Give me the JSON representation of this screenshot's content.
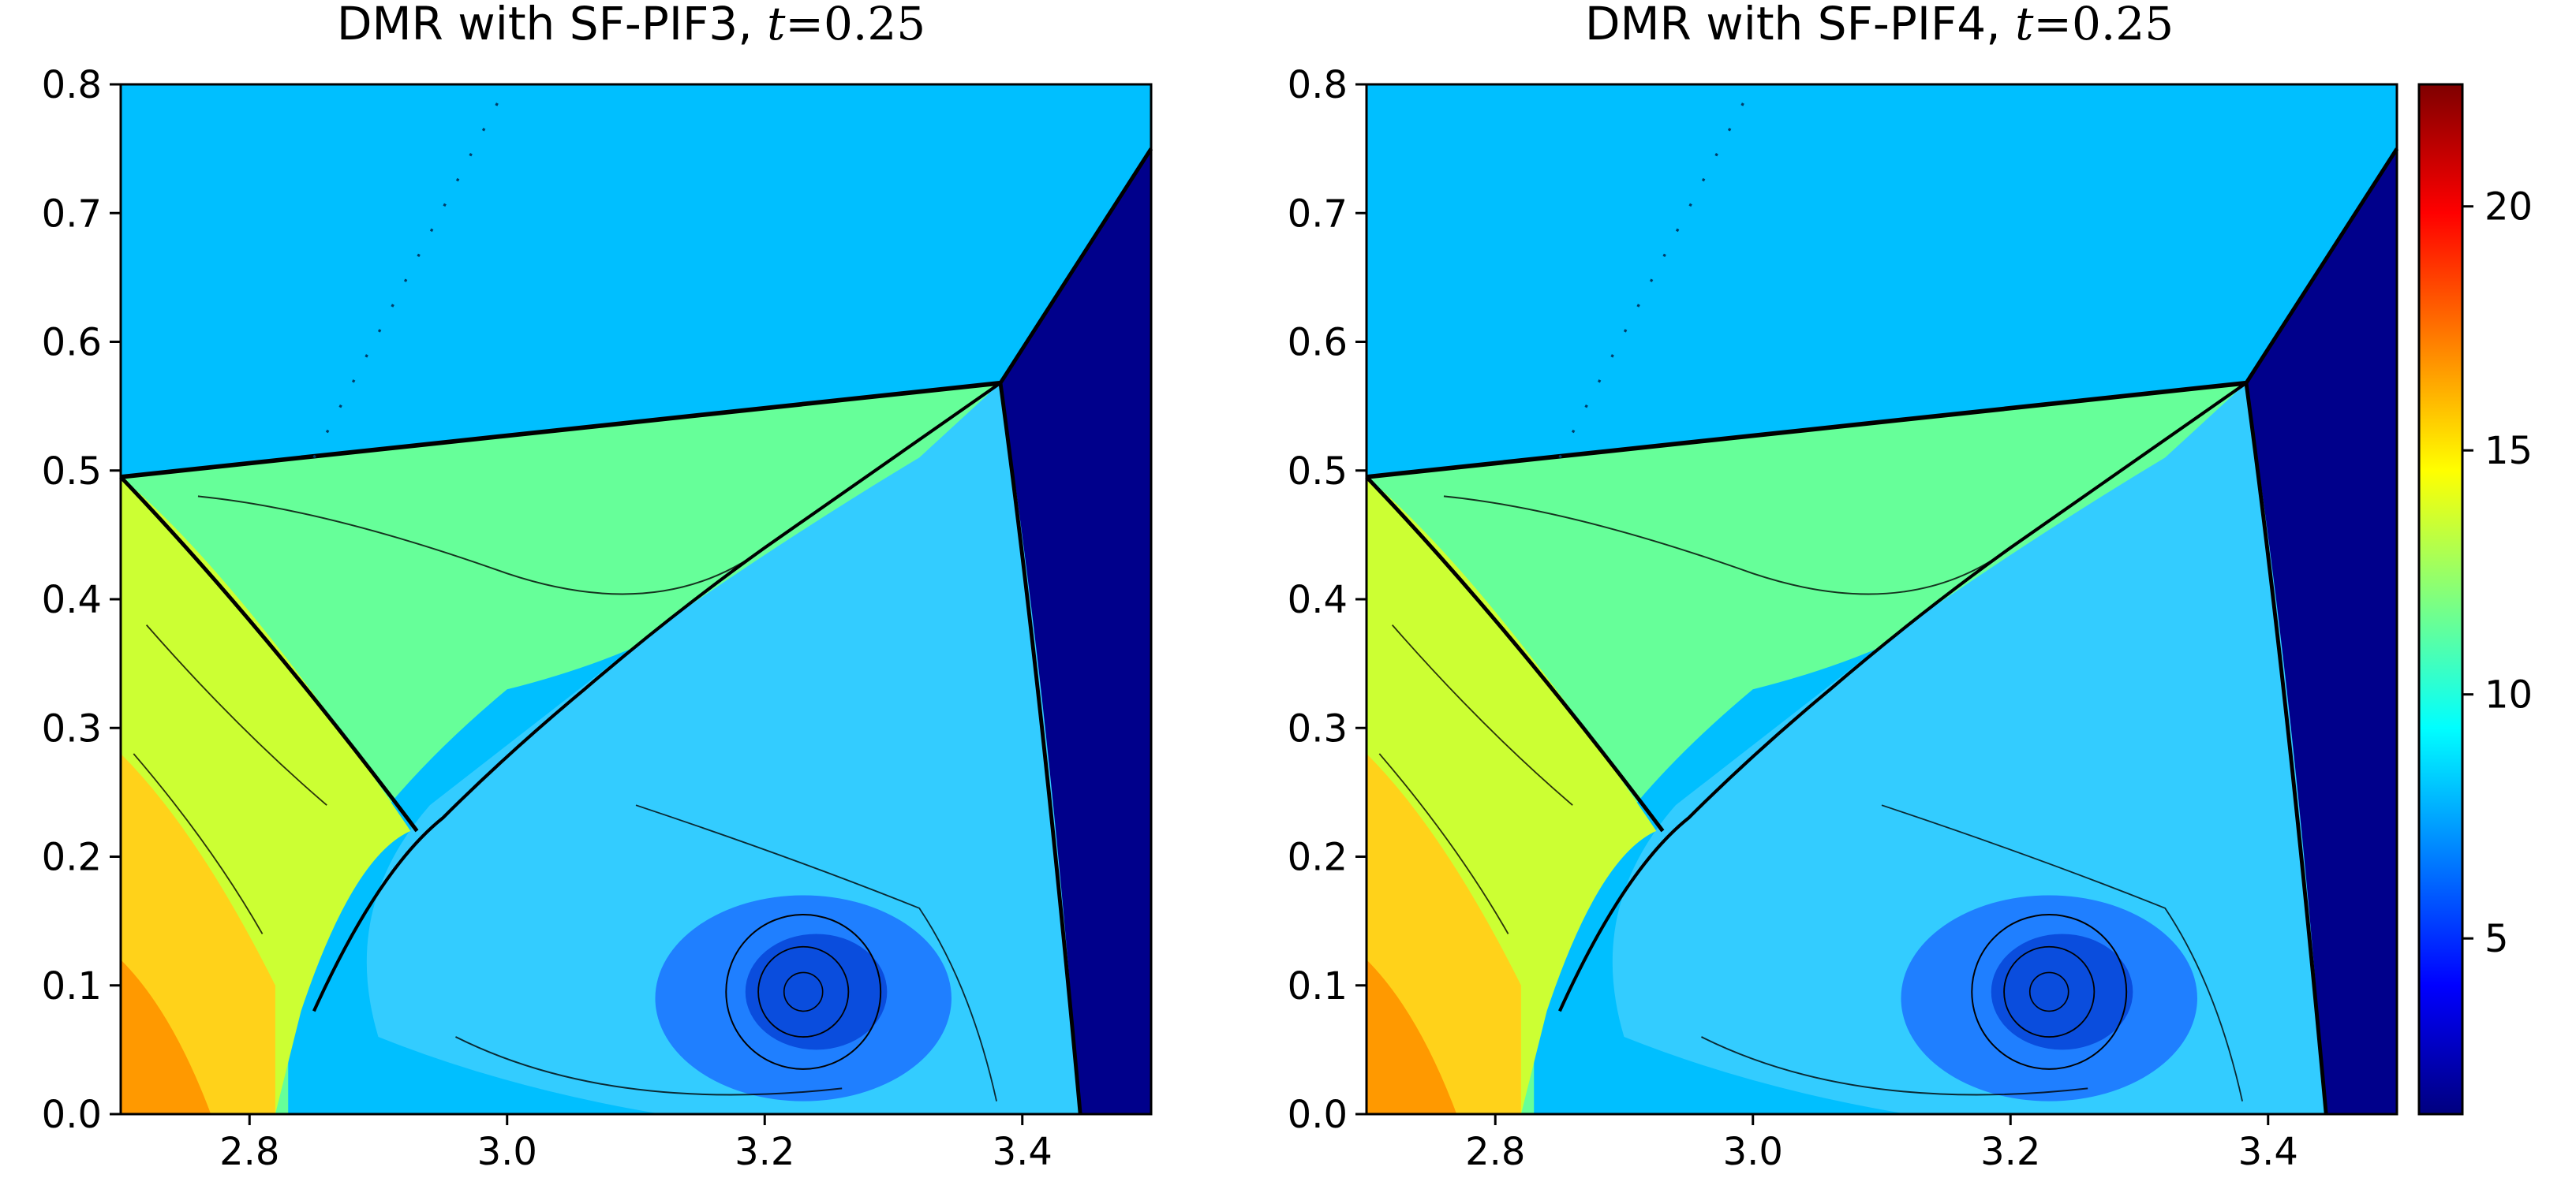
{
  "chart_data": [
    {
      "type": "heatmap",
      "title_main": "DMR with SF-PIF3, ",
      "title_var": "t",
      "title_eq": "=0.25",
      "x_range": [
        2.7,
        3.5
      ],
      "y_range": [
        0.0,
        0.8
      ],
      "x_ticks": [
        "2.8",
        "3.0",
        "3.2",
        "3.4"
      ],
      "x_tick_values": [
        2.8,
        3.0,
        3.2,
        3.4
      ],
      "y_ticks": [
        "0.0",
        "0.1",
        "0.2",
        "0.3",
        "0.4",
        "0.5",
        "0.6",
        "0.7",
        "0.8"
      ],
      "y_tick_values": [
        0.0,
        0.1,
        0.2,
        0.3,
        0.4,
        0.5,
        0.6,
        0.7,
        0.8
      ],
      "contour_lines": "black",
      "colormap": "jet"
    },
    {
      "type": "heatmap",
      "title_main": "DMR with SF-PIF4, ",
      "title_var": "t",
      "title_eq": "=0.25",
      "x_range": [
        2.7,
        3.5
      ],
      "y_range": [
        0.0,
        0.8
      ],
      "x_ticks": [
        "2.8",
        "3.0",
        "3.2",
        "3.4"
      ],
      "x_tick_values": [
        2.8,
        3.0,
        3.2,
        3.4
      ],
      "y_ticks": [
        "0.0",
        "0.1",
        "0.2",
        "0.3",
        "0.4",
        "0.5",
        "0.6",
        "0.7",
        "0.8"
      ],
      "y_tick_values": [
        0.0,
        0.1,
        0.2,
        0.3,
        0.4,
        0.5,
        0.6,
        0.7,
        0.8
      ],
      "contour_lines": "black",
      "colormap": "jet"
    }
  ],
  "colorbar": {
    "range": [
      1.4,
      22.5
    ],
    "ticks": [
      "5",
      "10",
      "15",
      "20"
    ],
    "tick_values": [
      5,
      10,
      15,
      20
    ],
    "colormap": "jet",
    "colors": [
      "#00007f",
      "#0000ff",
      "#007fff",
      "#00ffff",
      "#7fff7f",
      "#ffff00",
      "#ff7f00",
      "#ff0000",
      "#7f0000"
    ]
  },
  "colors": {
    "ambient": "#00bfff",
    "undisturbed": "#00008b",
    "mach_stem_region": "#66ff99",
    "wall_high": "#ff9900"
  }
}
